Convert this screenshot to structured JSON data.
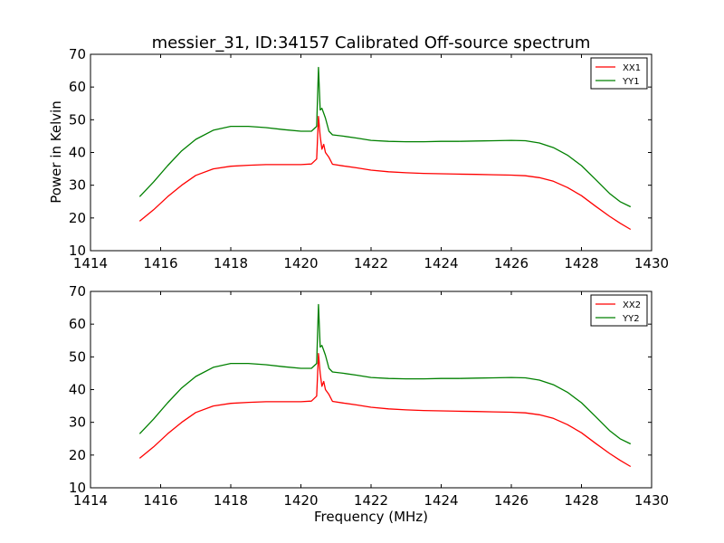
{
  "figure": {
    "title": "messier_31, ID:34157 Calibrated Off-source spectrum",
    "xlabel": "Frequency (MHz)",
    "ylabel_top": "Power in Kelvin"
  },
  "colors": {
    "red": "#ff0000",
    "green": "#008000",
    "axis": "#000000"
  },
  "chart_data": [
    {
      "type": "line",
      "title": "messier_31, ID:34157 Calibrated Off-source spectrum",
      "xlabel": "",
      "ylabel": "Power in Kelvin",
      "xlim": [
        1414,
        1430
      ],
      "ylim": [
        10,
        70
      ],
      "xticks": [
        "1414",
        "1416",
        "1418",
        "1420",
        "1422",
        "1424",
        "1426",
        "1428",
        "1430"
      ],
      "yticks": [
        "10",
        "20",
        "30",
        "40",
        "50",
        "60",
        "70"
      ],
      "legend_position": "top-right",
      "grid": false,
      "series": [
        {
          "name": "XX1",
          "color": "#ff0000",
          "x": [
            1415.4,
            1415.8,
            1416.2,
            1416.6,
            1417.0,
            1417.5,
            1418.0,
            1418.5,
            1419.0,
            1419.5,
            1420.0,
            1420.3,
            1420.45,
            1420.5,
            1420.55,
            1420.6,
            1420.65,
            1420.7,
            1420.8,
            1420.9,
            1421.2,
            1421.6,
            1422.0,
            1422.5,
            1423.0,
            1423.5,
            1424.0,
            1424.5,
            1425.0,
            1425.5,
            1426.0,
            1426.4,
            1426.8,
            1427.2,
            1427.6,
            1428.0,
            1428.4,
            1428.8,
            1429.1,
            1429.4
          ],
          "y": [
            19.0,
            22.5,
            26.5,
            30.0,
            33.0,
            35.0,
            35.8,
            36.1,
            36.3,
            36.3,
            36.3,
            36.5,
            38.0,
            51.0,
            45.0,
            41.0,
            42.5,
            40.0,
            38.5,
            36.4,
            35.9,
            35.3,
            34.6,
            34.1,
            33.8,
            33.6,
            33.5,
            33.4,
            33.3,
            33.2,
            33.1,
            32.9,
            32.3,
            31.2,
            29.3,
            26.8,
            23.6,
            20.5,
            18.4,
            16.5
          ]
        },
        {
          "name": "YY1",
          "color": "#008000",
          "x": [
            1415.4,
            1415.8,
            1416.2,
            1416.6,
            1417.0,
            1417.5,
            1418.0,
            1418.5,
            1419.0,
            1419.5,
            1420.0,
            1420.3,
            1420.45,
            1420.5,
            1420.55,
            1420.6,
            1420.65,
            1420.7,
            1420.8,
            1420.9,
            1421.2,
            1421.6,
            1422.0,
            1422.5,
            1423.0,
            1423.5,
            1424.0,
            1424.5,
            1425.0,
            1425.5,
            1426.0,
            1426.4,
            1426.8,
            1427.2,
            1427.6,
            1428.0,
            1428.4,
            1428.8,
            1429.1,
            1429.4
          ],
          "y": [
            26.5,
            31.0,
            36.0,
            40.5,
            44.0,
            46.8,
            48.0,
            48.0,
            47.6,
            47.0,
            46.5,
            46.5,
            48.0,
            66.0,
            53.0,
            53.5,
            52.0,
            50.5,
            46.5,
            45.4,
            45.0,
            44.4,
            43.7,
            43.4,
            43.3,
            43.3,
            43.4,
            43.4,
            43.5,
            43.6,
            43.7,
            43.6,
            42.9,
            41.5,
            39.2,
            36.0,
            31.8,
            27.5,
            25.0,
            23.4
          ]
        }
      ]
    },
    {
      "type": "line",
      "title": "",
      "xlabel": "Frequency (MHz)",
      "ylabel": "",
      "xlim": [
        1414,
        1430
      ],
      "ylim": [
        10,
        70
      ],
      "xticks": [
        "1414",
        "1416",
        "1418",
        "1420",
        "1422",
        "1424",
        "1426",
        "1428",
        "1430"
      ],
      "yticks": [
        "10",
        "20",
        "30",
        "40",
        "50",
        "60",
        "70"
      ],
      "legend_position": "top-right",
      "grid": false,
      "series": [
        {
          "name": "XX2",
          "color": "#ff0000",
          "x": [
            1415.4,
            1415.8,
            1416.2,
            1416.6,
            1417.0,
            1417.5,
            1418.0,
            1418.5,
            1419.0,
            1419.5,
            1420.0,
            1420.3,
            1420.45,
            1420.5,
            1420.55,
            1420.6,
            1420.65,
            1420.7,
            1420.8,
            1420.9,
            1421.2,
            1421.6,
            1422.0,
            1422.5,
            1423.0,
            1423.5,
            1424.0,
            1424.5,
            1425.0,
            1425.5,
            1426.0,
            1426.4,
            1426.8,
            1427.2,
            1427.6,
            1428.0,
            1428.4,
            1428.8,
            1429.1,
            1429.4
          ],
          "y": [
            19.0,
            22.5,
            26.5,
            30.0,
            33.0,
            35.0,
            35.8,
            36.1,
            36.3,
            36.3,
            36.3,
            36.5,
            38.0,
            51.0,
            45.0,
            41.0,
            42.5,
            40.0,
            38.5,
            36.4,
            35.9,
            35.3,
            34.6,
            34.1,
            33.8,
            33.6,
            33.5,
            33.4,
            33.3,
            33.2,
            33.1,
            32.9,
            32.3,
            31.2,
            29.3,
            26.8,
            23.6,
            20.5,
            18.4,
            16.5
          ]
        },
        {
          "name": "YY2",
          "color": "#008000",
          "x": [
            1415.4,
            1415.8,
            1416.2,
            1416.6,
            1417.0,
            1417.5,
            1418.0,
            1418.5,
            1419.0,
            1419.5,
            1420.0,
            1420.3,
            1420.45,
            1420.5,
            1420.55,
            1420.6,
            1420.65,
            1420.7,
            1420.8,
            1420.9,
            1421.2,
            1421.6,
            1422.0,
            1422.5,
            1423.0,
            1423.5,
            1424.0,
            1424.5,
            1425.0,
            1425.5,
            1426.0,
            1426.4,
            1426.8,
            1427.2,
            1427.6,
            1428.0,
            1428.4,
            1428.8,
            1429.1,
            1429.4
          ],
          "y": [
            26.5,
            31.0,
            36.0,
            40.5,
            44.0,
            46.8,
            48.0,
            48.0,
            47.6,
            47.0,
            46.5,
            46.5,
            48.0,
            66.0,
            53.0,
            53.5,
            52.0,
            50.5,
            46.5,
            45.4,
            45.0,
            44.4,
            43.7,
            43.4,
            43.3,
            43.3,
            43.4,
            43.4,
            43.5,
            43.6,
            43.7,
            43.6,
            42.9,
            41.5,
            39.2,
            36.0,
            31.8,
            27.5,
            25.0,
            23.4
          ]
        }
      ]
    }
  ]
}
